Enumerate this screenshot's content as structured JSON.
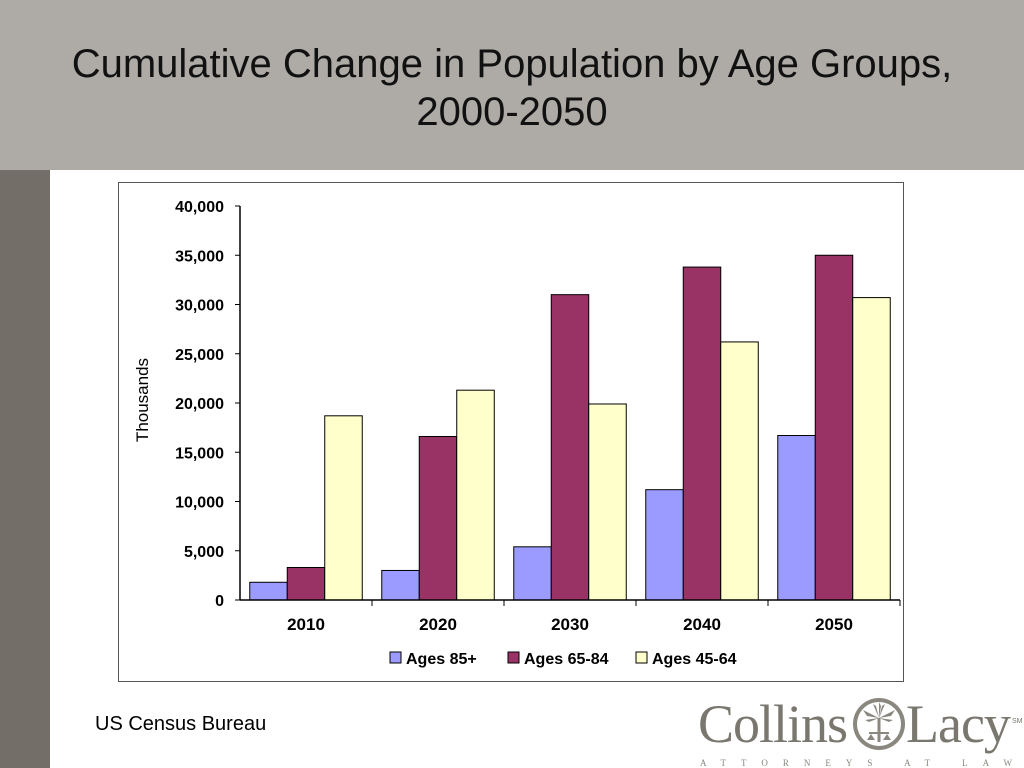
{
  "slide": {
    "title": "Cumulative Change in Population by Age Groups, 2000-2050",
    "source": "US Census Bureau"
  },
  "logo": {
    "left_word": "Collins",
    "right_word": "Lacy",
    "mark": "SM",
    "tagline": "ATTORNEYS AT LAW"
  },
  "colors": {
    "title_band": "#aeaba6",
    "left_bar": "#736e68"
  },
  "chart_data": {
    "type": "bar",
    "title": "",
    "xlabel": "",
    "ylabel": "Thousands",
    "ylim": [
      0,
      40000
    ],
    "yticks": [
      0,
      5000,
      10000,
      15000,
      20000,
      25000,
      30000,
      35000,
      40000
    ],
    "ytick_labels": [
      "0",
      "5,000",
      "10,000",
      "15,000",
      "20,000",
      "25,000",
      "30,000",
      "35,000",
      "40,000"
    ],
    "categories": [
      "2010",
      "2020",
      "2030",
      "2040",
      "2050"
    ],
    "series": [
      {
        "name": "Ages 85+",
        "color": "#9a9aff",
        "values": [
          1800,
          3000,
          5400,
          11200,
          16700
        ]
      },
      {
        "name": "Ages 65-84",
        "color": "#993366",
        "values": [
          3300,
          16600,
          31000,
          33800,
          35000
        ]
      },
      {
        "name": "Ages 45-64",
        "color": "#ffffcc",
        "values": [
          18700,
          21300,
          19900,
          26200,
          30700
        ]
      }
    ],
    "grid": false,
    "legend_position": "bottom"
  }
}
